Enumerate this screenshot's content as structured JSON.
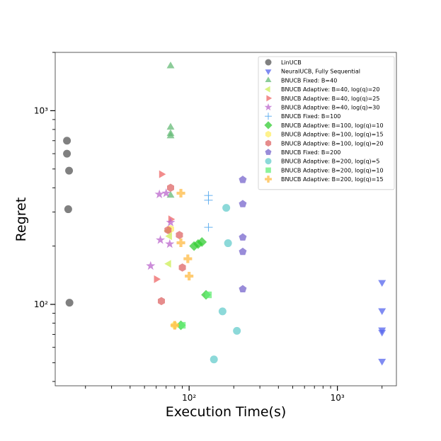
{
  "chart_data": {
    "type": "scatter",
    "title": "",
    "xlabel": "Execution Time(s)",
    "ylabel": "Regret",
    "xscale": "log",
    "yscale": "log",
    "xlim": [
      12.5,
      2500
    ],
    "ylim": [
      38,
      2000
    ],
    "x_ticks": [
      {
        "value": 100,
        "label": "10²"
      },
      {
        "value": 1000,
        "label": "10³"
      }
    ],
    "y_ticks": [
      {
        "value": 100,
        "label": "10²"
      },
      {
        "value": 1000,
        "label": "10³"
      }
    ],
    "legend_position": "top-right",
    "series": [
      {
        "name": "LinUCB",
        "marker": "circle",
        "color": "#555555",
        "points": [
          [
            15,
            700
          ],
          [
            15,
            600
          ],
          [
            15.5,
            490
          ],
          [
            15.3,
            310
          ],
          [
            15.6,
            102
          ]
        ]
      },
      {
        "name": "NeuralUCB, Fully Sequential",
        "marker": "triangle-down",
        "color": "#5566ee",
        "points": [
          [
            2000,
            130
          ],
          [
            2000,
            93
          ],
          [
            2000,
            74
          ],
          [
            2000,
            72
          ],
          [
            2000,
            51
          ]
        ]
      },
      {
        "name": "BNUCB Fixed: B=40",
        "marker": "triangle-up",
        "color": "#66bb77",
        "points": [
          [
            75,
            1700
          ],
          [
            75,
            820
          ],
          [
            75,
            760
          ],
          [
            75,
            740
          ],
          [
            75,
            365
          ]
        ]
      },
      {
        "name": "BNUCB Adaptive: B=40, log(q)=20",
        "marker": "triangle-left",
        "color": "#ccee55",
        "points": [
          [
            72,
            240
          ],
          [
            74,
            225
          ],
          [
            73,
            162
          ]
        ]
      },
      {
        "name": "BNUCB Adaptive: B=40, log(q)=25",
        "marker": "triangle-right",
        "color": "#ee6666",
        "points": [
          [
            65,
            470
          ],
          [
            75,
            275
          ],
          [
            60,
            135
          ]
        ]
      },
      {
        "name": "BNUCB Adaptive: B=40, log(q)=30",
        "marker": "star",
        "color": "#bb66cc",
        "points": [
          [
            63,
            370
          ],
          [
            70,
            375
          ],
          [
            75,
            265
          ],
          [
            64,
            215
          ],
          [
            74,
            205
          ],
          [
            55,
            158
          ]
        ]
      },
      {
        "name": "BNUCB Fixed: B=100",
        "marker": "plus",
        "color": "#55aaee",
        "points": [
          [
            135,
            365
          ],
          [
            135,
            345
          ],
          [
            135,
            250
          ]
        ]
      },
      {
        "name": "BNUCB Adaptive: B=100, log(q)=10",
        "marker": "diamond",
        "color": "#33cc33",
        "points": [
          [
            108,
            200
          ],
          [
            115,
            205
          ],
          [
            122,
            210
          ],
          [
            130,
            112
          ],
          [
            88,
            78
          ]
        ]
      },
      {
        "name": "BNUCB Adaptive: B=100, log(q)=15",
        "marker": "hexagon",
        "color": "#ffee66",
        "points": [
          [
            75,
            245
          ],
          [
            80,
            78
          ]
        ]
      },
      {
        "name": "BNUCB Adaptive: B=100, log(q)=20",
        "marker": "hexagon",
        "color": "#dd6666",
        "points": [
          [
            75,
            400
          ],
          [
            72,
            242
          ],
          [
            86,
            228
          ],
          [
            90,
            155
          ],
          [
            65,
            104
          ]
        ]
      },
      {
        "name": "BNUCB Fixed: B=200",
        "marker": "pentagon",
        "color": "#7766cc",
        "points": [
          [
            230,
            440
          ],
          [
            230,
            330
          ],
          [
            230,
            222
          ],
          [
            230,
            187
          ],
          [
            230,
            120
          ]
        ]
      },
      {
        "name": "BNUCB Adaptive: B=200, log(q)=5",
        "marker": "circle",
        "color": "#66cccc",
        "points": [
          [
            178,
            315
          ],
          [
            183,
            207
          ],
          [
            168,
            92
          ],
          [
            210,
            73
          ],
          [
            147,
            52
          ]
        ]
      },
      {
        "name": "BNUCB Adaptive: B=200, log(q)=10",
        "marker": "square",
        "color": "#66ee77",
        "points": [
          [
            135,
            112
          ],
          [
            90,
            78
          ]
        ]
      },
      {
        "name": "BNUCB Adaptive: B=200, log(q)=15",
        "marker": "plus-thick",
        "color": "#ffbb44",
        "points": [
          [
            88,
            375
          ],
          [
            88,
            208
          ],
          [
            98,
            172
          ],
          [
            100,
            140
          ],
          [
            80,
            78
          ]
        ]
      }
    ]
  }
}
